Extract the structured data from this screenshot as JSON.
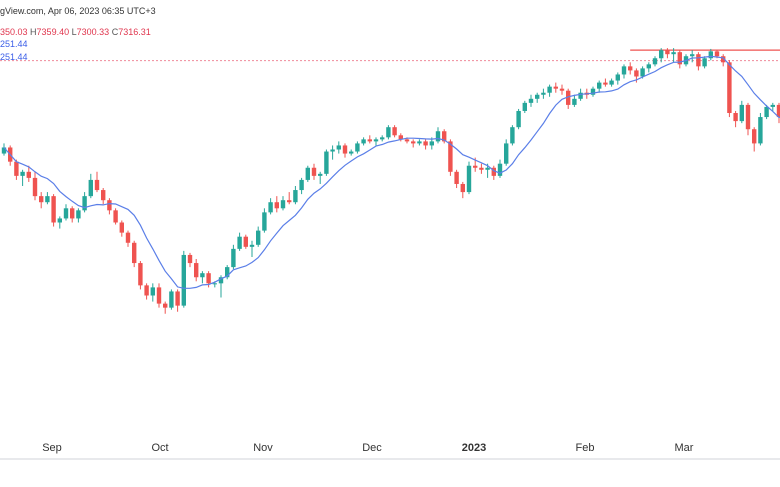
{
  "header": {
    "source": "gView.com, Apr 06, 2023 06:35 UTC+3",
    "ohlc": {
      "o_value": "350.03",
      "h_label": "H",
      "h_value": "7359.40",
      "l_label": "L",
      "l_value": "7300.33",
      "c_label": "C",
      "c_value": "7316.31"
    },
    "ma_line_1": "251.44",
    "ma_line_2": "251.44"
  },
  "colors": {
    "up": "#26a69a",
    "down": "#ef5350",
    "ma": "#5b7fe8",
    "resistance": "#ef5350",
    "dotted_level": "#ef8a9a",
    "axis_line": "#d0d3da",
    "background": "#ffffff"
  },
  "chart_data": {
    "type": "candlestick",
    "title": "",
    "x_tick_labels": [
      "Sep",
      "Oct",
      "Nov",
      "Dec",
      "2023",
      "Feb",
      "Mar"
    ],
    "ylim": [
      6700,
      7600
    ],
    "resistance_level": 7575,
    "dotted_level": 7549,
    "note_on_units": "price values estimated; no y-axis printed",
    "candles": [
      [
        7320,
        7345,
        7315,
        7335
      ],
      [
        7335,
        7340,
        7290,
        7300
      ],
      [
        7300,
        7305,
        7255,
        7265
      ],
      [
        7265,
        7280,
        7240,
        7275
      ],
      [
        7275,
        7290,
        7250,
        7260
      ],
      [
        7260,
        7275,
        7205,
        7215
      ],
      [
        7215,
        7225,
        7185,
        7200
      ],
      [
        7200,
        7225,
        7195,
        7215
      ],
      [
        7215,
        7220,
        7140,
        7150
      ],
      [
        7150,
        7165,
        7135,
        7160
      ],
      [
        7160,
        7195,
        7155,
        7185
      ],
      [
        7185,
        7190,
        7150,
        7160
      ],
      [
        7160,
        7185,
        7150,
        7180
      ],
      [
        7180,
        7225,
        7175,
        7215
      ],
      [
        7215,
        7270,
        7210,
        7255
      ],
      [
        7255,
        7275,
        7225,
        7230
      ],
      [
        7230,
        7235,
        7195,
        7205
      ],
      [
        7205,
        7210,
        7170,
        7180
      ],
      [
        7180,
        7185,
        7145,
        7150
      ],
      [
        7150,
        7155,
        7115,
        7125
      ],
      [
        7125,
        7130,
        7090,
        7100
      ],
      [
        7100,
        7105,
        7040,
        7050
      ],
      [
        7050,
        7055,
        6985,
        6995
      ],
      [
        6995,
        7000,
        6960,
        6970
      ],
      [
        6970,
        7000,
        6955,
        6990
      ],
      [
        6990,
        7000,
        6940,
        6950
      ],
      [
        6950,
        6955,
        6925,
        6940
      ],
      [
        6940,
        6985,
        6935,
        6980
      ],
      [
        6980,
        6985,
        6930,
        6945
      ],
      [
        6945,
        7080,
        6940,
        7070
      ],
      [
        7070,
        7075,
        7040,
        7050
      ],
      [
        7050,
        7060,
        7005,
        7015
      ],
      [
        7015,
        7030,
        7000,
        7025
      ],
      [
        7025,
        7030,
        6990,
        7000
      ],
      [
        7000,
        7005,
        6990,
        7000
      ],
      [
        7000,
        7020,
        6965,
        7015
      ],
      [
        7015,
        7045,
        7010,
        7040
      ],
      [
        7040,
        7095,
        7035,
        7085
      ],
      [
        7085,
        7125,
        7080,
        7115
      ],
      [
        7115,
        7120,
        7085,
        7090
      ],
      [
        7090,
        7105,
        7065,
        7095
      ],
      [
        7095,
        7140,
        7090,
        7130
      ],
      [
        7130,
        7185,
        7125,
        7175
      ],
      [
        7175,
        7210,
        7170,
        7200
      ],
      [
        7200,
        7215,
        7175,
        7185
      ],
      [
        7185,
        7215,
        7180,
        7205
      ],
      [
        7205,
        7225,
        7195,
        7200
      ],
      [
        7200,
        7240,
        7195,
        7230
      ],
      [
        7230,
        7260,
        7220,
        7255
      ],
      [
        7255,
        7290,
        7250,
        7285
      ],
      [
        7285,
        7295,
        7255,
        7265
      ],
      [
        7265,
        7275,
        7245,
        7270
      ],
      [
        7270,
        7330,
        7265,
        7325
      ],
      [
        7325,
        7340,
        7305,
        7330
      ],
      [
        7330,
        7350,
        7320,
        7340
      ],
      [
        7340,
        7345,
        7310,
        7320
      ],
      [
        7320,
        7330,
        7315,
        7325
      ],
      [
        7325,
        7350,
        7320,
        7345
      ],
      [
        7345,
        7360,
        7340,
        7355
      ],
      [
        7355,
        7365,
        7345,
        7350
      ],
      [
        7350,
        7360,
        7340,
        7355
      ],
      [
        7355,
        7365,
        7350,
        7360
      ],
      [
        7360,
        7390,
        7355,
        7385
      ],
      [
        7385,
        7390,
        7360,
        7365
      ],
      [
        7365,
        7370,
        7350,
        7355
      ],
      [
        7355,
        7360,
        7345,
        7350
      ],
      [
        7350,
        7355,
        7335,
        7345
      ],
      [
        7345,
        7355,
        7340,
        7350
      ],
      [
        7350,
        7355,
        7330,
        7340
      ],
      [
        7340,
        7360,
        7330,
        7350
      ],
      [
        7350,
        7385,
        7345,
        7375
      ],
      [
        7375,
        7380,
        7345,
        7350
      ],
      [
        7350,
        7355,
        7265,
        7275
      ],
      [
        7275,
        7280,
        7235,
        7245
      ],
      [
        7245,
        7250,
        7210,
        7225
      ],
      [
        7225,
        7300,
        7220,
        7290
      ],
      [
        7290,
        7310,
        7275,
        7285
      ],
      [
        7285,
        7295,
        7270,
        7280
      ],
      [
        7280,
        7295,
        7260,
        7285
      ],
      [
        7285,
        7290,
        7255,
        7265
      ],
      [
        7265,
        7305,
        7260,
        7295
      ],
      [
        7295,
        7355,
        7290,
        7345
      ],
      [
        7345,
        7390,
        7340,
        7385
      ],
      [
        7385,
        7430,
        7380,
        7425
      ],
      [
        7425,
        7450,
        7420,
        7445
      ],
      [
        7445,
        7465,
        7435,
        7455
      ],
      [
        7455,
        7470,
        7445,
        7465
      ],
      [
        7465,
        7480,
        7455,
        7470
      ],
      [
        7470,
        7490,
        7460,
        7485
      ],
      [
        7485,
        7495,
        7470,
        7480
      ],
      [
        7480,
        7490,
        7465,
        7475
      ],
      [
        7475,
        7480,
        7430,
        7440
      ],
      [
        7440,
        7465,
        7435,
        7455
      ],
      [
        7455,
        7480,
        7450,
        7470
      ],
      [
        7470,
        7480,
        7455,
        7465
      ],
      [
        7465,
        7485,
        7460,
        7480
      ],
      [
        7480,
        7500,
        7470,
        7495
      ],
      [
        7495,
        7505,
        7485,
        7490
      ],
      [
        7490,
        7505,
        7485,
        7500
      ],
      [
        7500,
        7520,
        7490,
        7515
      ],
      [
        7515,
        7540,
        7505,
        7535
      ],
      [
        7535,
        7545,
        7515,
        7525
      ],
      [
        7525,
        7530,
        7495,
        7510
      ],
      [
        7510,
        7535,
        7505,
        7530
      ],
      [
        7530,
        7545,
        7520,
        7540
      ],
      [
        7540,
        7560,
        7535,
        7555
      ],
      [
        7555,
        7580,
        7545,
        7575
      ],
      [
        7575,
        7580,
        7555,
        7565
      ],
      [
        7565,
        7580,
        7545,
        7570
      ],
      [
        7570,
        7575,
        7530,
        7540
      ],
      [
        7540,
        7565,
        7535,
        7560
      ],
      [
        7560,
        7575,
        7545,
        7565
      ],
      [
        7565,
        7570,
        7525,
        7535
      ],
      [
        7535,
        7560,
        7530,
        7555
      ],
      [
        7555,
        7578,
        7550,
        7572
      ],
      [
        7572,
        7575,
        7555,
        7560
      ],
      [
        7560,
        7565,
        7535,
        7545
      ],
      [
        7545,
        7550,
        7410,
        7420
      ],
      [
        7420,
        7425,
        7385,
        7400
      ],
      [
        7400,
        7450,
        7395,
        7440
      ],
      [
        7440,
        7445,
        7365,
        7380
      ],
      [
        7380,
        7385,
        7325,
        7345
      ],
      [
        7345,
        7420,
        7340,
        7410
      ],
      [
        7410,
        7440,
        7405,
        7435
      ],
      [
        7435,
        7445,
        7425,
        7440
      ],
      [
        7440,
        7445,
        7395,
        7410
      ],
      [
        7410,
        7450,
        7405,
        7445
      ],
      [
        7445,
        7455,
        7425,
        7430
      ]
    ],
    "ma_period": 9
  }
}
